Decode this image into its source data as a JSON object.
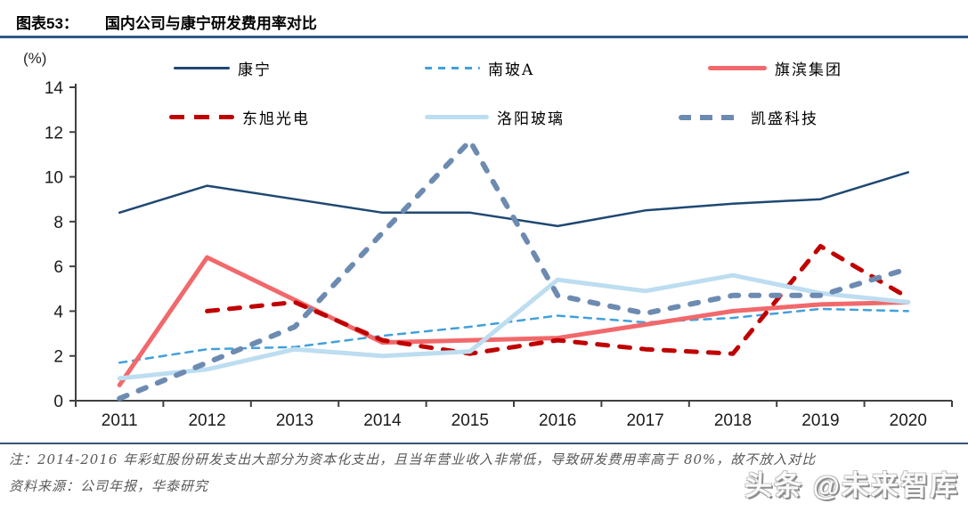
{
  "title": {
    "prefix": "图表53：",
    "text": "国内公司与康宁研发费用率对比"
  },
  "axis": {
    "unit_label": "(%)",
    "y_ticks": [
      0,
      2,
      4,
      6,
      8,
      10,
      12,
      14
    ]
  },
  "chart_data": {
    "type": "line",
    "title": "国内公司与康宁研发费用率对比",
    "ylabel": "(%)",
    "ylim": [
      0,
      14
    ],
    "grid": false,
    "legend_position": "top",
    "categories": [
      "2011",
      "2012",
      "2013",
      "2014",
      "2015",
      "2016",
      "2017",
      "2018",
      "2019",
      "2020"
    ],
    "series": [
      {
        "name": "康宁",
        "color": "#1F4872",
        "line": "solid",
        "width": 2.5,
        "values": [
          8.4,
          9.6,
          9.0,
          8.4,
          8.4,
          7.8,
          8.5,
          8.8,
          9.0,
          10.2
        ]
      },
      {
        "name": "南玻A",
        "color": "#41A0DC",
        "line": "dashed",
        "width": 2.5,
        "values": [
          1.7,
          2.3,
          2.4,
          2.9,
          3.3,
          3.8,
          3.5,
          3.7,
          4.1,
          4.0
        ]
      },
      {
        "name": "旗滨集团",
        "color": "#F1696B",
        "line": "solid",
        "width": 5,
        "values": [
          0.7,
          6.4,
          4.5,
          2.6,
          2.7,
          2.8,
          3.4,
          4.0,
          4.3,
          4.4
        ]
      },
      {
        "name": "东旭光电",
        "color": "#C00000",
        "line": "dashed",
        "width": 5,
        "values": [
          null,
          4.0,
          4.4,
          2.7,
          2.1,
          2.7,
          2.3,
          2.1,
          6.9,
          4.6
        ]
      },
      {
        "name": "洛阳玻璃",
        "color": "#BDDDF0",
        "line": "solid",
        "width": 5,
        "values": [
          1.0,
          1.4,
          2.3,
          2.0,
          2.2,
          5.4,
          4.9,
          5.6,
          4.8,
          4.4
        ]
      },
      {
        "name": "凯盛科技",
        "color": "#6D8BB1",
        "line": "dashed",
        "width": 6,
        "values": [
          0.1,
          1.7,
          3.3,
          7.5,
          11.6,
          4.7,
          3.9,
          4.7,
          4.7,
          5.9
        ]
      }
    ]
  },
  "notes": {
    "note": "注：2014-2016 年彩虹股份研发支出大部分为资本化支出，且当年营业收入非常低，导致研发费用率高于 80%，故不放入对比",
    "source": "资料来源：公司年报，华泰研究"
  },
  "watermark": "头条 @未来智库"
}
